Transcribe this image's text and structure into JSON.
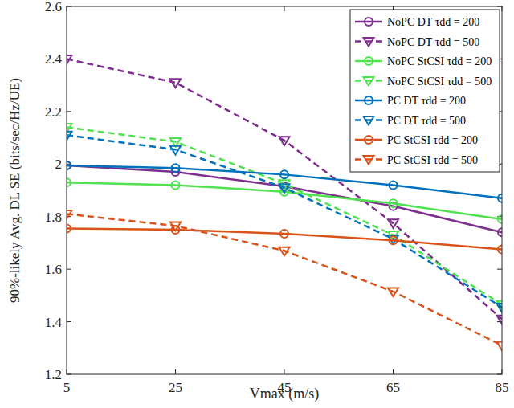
{
  "chart_data": {
    "type": "line",
    "x_label": "Vmax (m/s)",
    "y_label": "90%-likely Avg. DL SE (bits/sec/Hz/UE)",
    "x": [
      5,
      25,
      45,
      65,
      85
    ],
    "xlim": [
      5,
      85
    ],
    "xticks": [
      5,
      25,
      45,
      65,
      85
    ],
    "ylim": [
      1.2,
      2.6
    ],
    "yticks": [
      {
        "value": 1.2,
        "label": "1.2"
      },
      {
        "value": 1.4,
        "label": "1.4"
      },
      {
        "value": 1.6,
        "label": "1.6"
      },
      {
        "value": 1.8,
        "label": "1.8"
      },
      {
        "value": 2,
        "label": "2"
      },
      {
        "value": 2.2,
        "label": "2.2"
      },
      {
        "value": 2.4,
        "label": "2.4"
      },
      {
        "value": 2.6,
        "label": "2.6"
      }
    ],
    "grid": false,
    "legend": "upper right",
    "series": [
      {
        "name": "NoPC DT τdd = 200",
        "color": "#7e2f8e",
        "marker": "circle",
        "line_style": "solid",
        "values": [
          1.995,
          1.97,
          1.915,
          1.84,
          1.74
        ]
      },
      {
        "name": "NoPC DT τdd = 500",
        "color": "#7e2f8e",
        "marker": "triangle-down",
        "line_style": "dashed",
        "values": [
          2.4,
          2.31,
          2.09,
          1.775,
          1.41
        ]
      },
      {
        "name": "NoPC StCSI τdd = 200",
        "color": "#4fe24f",
        "marker": "circle",
        "line_style": "solid",
        "values": [
          1.93,
          1.92,
          1.895,
          1.85,
          1.79
        ]
      },
      {
        "name": "NoPC StCSI τdd = 500",
        "color": "#4fe24f",
        "marker": "triangle-down",
        "line_style": "dashed",
        "values": [
          2.14,
          2.085,
          1.925,
          1.73,
          1.465
        ]
      },
      {
        "name": "PC DT τdd = 200",
        "color": "#0072bd",
        "marker": "circle",
        "line_style": "solid",
        "values": [
          1.995,
          1.985,
          1.96,
          1.92,
          1.87
        ]
      },
      {
        "name": "PC DT τdd = 500",
        "color": "#0072bd",
        "marker": "triangle-down",
        "line_style": "dashed",
        "values": [
          2.11,
          2.055,
          1.91,
          1.715,
          1.455
        ]
      },
      {
        "name": "PC StCSI τdd = 200",
        "color": "#d95319",
        "marker": "circle",
        "line_style": "solid",
        "values": [
          1.755,
          1.75,
          1.735,
          1.71,
          1.675
        ]
      },
      {
        "name": "PC StCSI τdd = 500",
        "color": "#d95319",
        "marker": "triangle-down",
        "line_style": "dashed",
        "values": [
          1.81,
          1.765,
          1.67,
          1.515,
          1.31
        ]
      }
    ]
  }
}
